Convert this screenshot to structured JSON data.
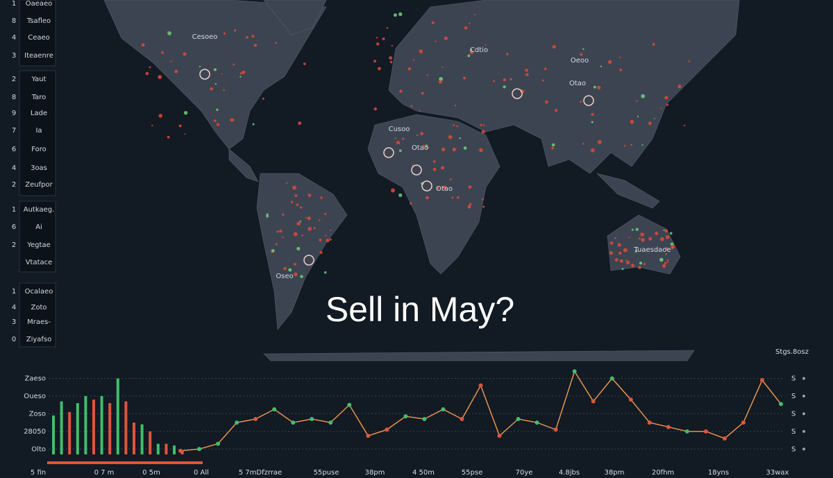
{
  "sidebar": {
    "items": [
      {
        "number": "1",
        "label": "Oaeaeo"
      },
      {
        "number": "8",
        "label": "Tsafleo"
      },
      {
        "number": "4",
        "label": "Ceaeo"
      },
      {
        "number": "3",
        "label": "Iteaenre"
      },
      {
        "number": "2",
        "label": "Yaut"
      },
      {
        "number": "8",
        "label": "Taro"
      },
      {
        "number": "9",
        "label": "Lade"
      },
      {
        "number": "7",
        "label": "Ia"
      },
      {
        "number": "6",
        "label": "Foro"
      },
      {
        "number": "4",
        "label": "3oas"
      },
      {
        "number": "2",
        "label": "Zeufpor"
      },
      {
        "number": "1",
        "label": "Autkaeg."
      },
      {
        "number": "6",
        "label": "Ai"
      },
      {
        "number": "2",
        "label": "Yegtae"
      },
      {
        "number": null,
        "label": "Vtatace"
      },
      {
        "number": "1",
        "label": "Ocalaeo"
      },
      {
        "number": "4",
        "label": "Zoto"
      },
      {
        "number": "3",
        "label": "Mraes-"
      },
      {
        "number": "0",
        "label": "Ziyafso"
      }
    ]
  },
  "map": {
    "title": "Sell in May?",
    "labels": [
      "Cesoeo",
      "Cdtio",
      "Oeoo",
      "Otao",
      "Cusoo",
      "Otao",
      "Otao",
      "Tuaesdaoe",
      "Oseo"
    ]
  },
  "chart_data": {
    "type": "combo",
    "corner_label": "Stgs.8osz",
    "ylim": [
      0,
      5.5
    ],
    "yticks": [
      {
        "value": 4.5,
        "label": "Zaeso"
      },
      {
        "value": 3.5,
        "label": "Oueso"
      },
      {
        "value": 2.5,
        "label": "Zoso"
      },
      {
        "value": 1.5,
        "label": "28050"
      },
      {
        "value": 0.5,
        "label": "Olto"
      }
    ],
    "right_labels": [
      "S",
      "S",
      "S",
      "S",
      "S"
    ],
    "xlabels": [
      "5 fin",
      "0 7 m",
      "0 5m",
      "0 All",
      "5 7mDfzrrae",
      "55puse",
      "38pm",
      "4 50m",
      "55pse",
      "70ye",
      "4.8jbs",
      "38pm",
      "20fhm",
      "18yns",
      "33wax"
    ],
    "bars": {
      "values": [
        2.4,
        3.2,
        2.6,
        3.1,
        3.5,
        3.3,
        3.5,
        3.1,
        4.5,
        3.2,
        2.0,
        1.9,
        1.5,
        0.8,
        0.8,
        0.7,
        0.4
      ],
      "colors": [
        "#3fbf6a",
        "#3fbf6a",
        "#e0553a",
        "#3fbf6a",
        "#3fbf6a",
        "#e0553a",
        "#3fbf6a",
        "#e0553a",
        "#3fbf6a",
        "#e0553a",
        "#e0553a",
        "#3fbf6a",
        "#e0553a",
        "#3fbf6a",
        "#e0553a",
        "#3fbf6a",
        "#e0553a"
      ]
    },
    "line": {
      "color": "#e8944a",
      "values": [
        0.4,
        0.5,
        0.8,
        2.0,
        2.2,
        2.75,
        2.0,
        2.2,
        2.0,
        3.0,
        1.25,
        1.6,
        2.35,
        2.2,
        2.75,
        2.2,
        4.1,
        1.25,
        2.2,
        2.0,
        1.6,
        4.9,
        3.2,
        4.5,
        3.3,
        2.0,
        1.75,
        1.5,
        1.5,
        1.1,
        2.0,
        4.4,
        3.05
      ],
      "point_colors": [
        "#e0553a",
        "#3fbf6a",
        "#3fbf6a",
        "#3fbf6a",
        "#e0553a",
        "#3fbf6a",
        "#3fbf6a",
        "#3fbf6a",
        "#3fbf6a",
        "#3fbf6a",
        "#e0553a",
        "#e0553a",
        "#3fbf6a",
        "#3fbf6a",
        "#3fbf6a",
        "#e0553a",
        "#e0553a",
        "#e0553a",
        "#3fbf6a",
        "#3fbf6a",
        "#e0553a",
        "#3fbf6a",
        "#e0553a",
        "#3fbf6a",
        "#e0553a",
        "#e0553a",
        "#e0553a",
        "#3fbf6a",
        "#e0553a",
        "#e0553a",
        "#e0553a",
        "#e0553a",
        "#3fbf6a"
      ]
    }
  }
}
